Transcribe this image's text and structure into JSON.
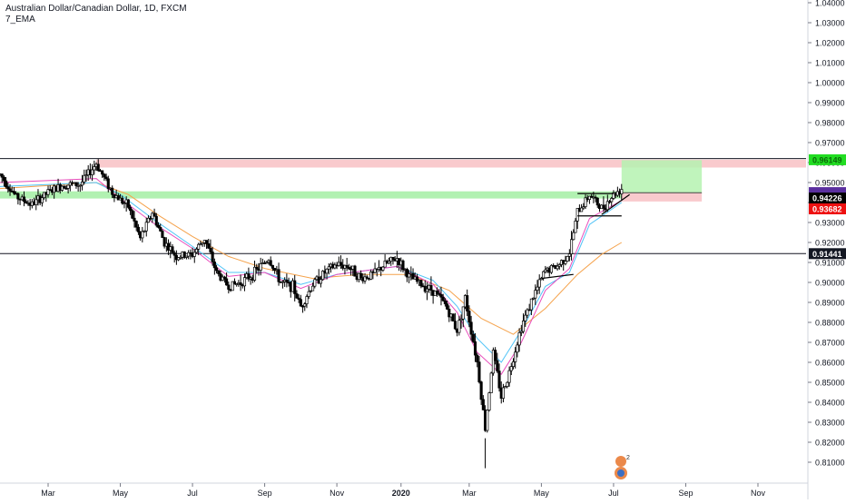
{
  "chart": {
    "title": "Australian Dollar/Canadian Dollar, 1D, FXCM",
    "indicator_label": "7_EMA",
    "watermark_text": "2"
  },
  "chart_data": {
    "type": "candlestick",
    "symbol": "AUDCAD",
    "timeframe": "1D",
    "broker": "FXCM",
    "y_range": [
      0.8,
      1.04
    ],
    "y_ticks": [
      1.04,
      1.03,
      1.02,
      1.01,
      1.0,
      0.99,
      0.98,
      0.97,
      0.96,
      0.95,
      0.94,
      0.93,
      0.92,
      0.91,
      0.9,
      0.89,
      0.88,
      0.87,
      0.86,
      0.85,
      0.84,
      0.83,
      0.82,
      0.81
    ],
    "y_tick_labels": [
      "1.04000",
      "1.03000",
      "1.02000",
      "1.01000",
      "1.00000",
      "0.99000",
      "0.98000",
      "0.97000",
      "0.96000",
      "0.95000",
      "0.94000",
      "0.93000",
      "0.92000",
      "0.91000",
      "0.90000",
      "0.89000",
      "0.88000",
      "0.87000",
      "0.86000",
      "0.85000",
      "0.84000",
      "0.83000",
      "0.82000",
      "0.81000"
    ],
    "x_labels": [
      {
        "label": "Mar",
        "x": 12
      },
      {
        "label": "May",
        "x": 30
      },
      {
        "label": "Jul",
        "x": 48
      },
      {
        "label": "Sep",
        "x": 66
      },
      {
        "label": "Nov",
        "x": 84
      },
      {
        "label": "2020",
        "x": 100
      },
      {
        "label": "Mar",
        "x": 117
      },
      {
        "label": "May",
        "x": 135
      },
      {
        "label": "Jul",
        "x": 153
      },
      {
        "label": "Sep",
        "x": 171
      },
      {
        "label": "Nov",
        "x": 189
      }
    ],
    "x_range": [
      0,
      201
    ],
    "price_path": [
      [
        0,
        0.954
      ],
      [
        4,
        0.943
      ],
      [
        8,
        0.939
      ],
      [
        12,
        0.945
      ],
      [
        16,
        0.949
      ],
      [
        20,
        0.949
      ],
      [
        24,
        0.9595
      ],
      [
        28,
        0.945
      ],
      [
        32,
        0.938
      ],
      [
        35,
        0.922
      ],
      [
        38,
        0.935
      ],
      [
        41,
        0.92
      ],
      [
        44,
        0.913
      ],
      [
        48,
        0.914
      ],
      [
        51,
        0.922
      ],
      [
        54,
        0.905
      ],
      [
        57,
        0.898
      ],
      [
        60,
        0.9
      ],
      [
        63,
        0.904
      ],
      [
        67,
        0.912
      ],
      [
        70,
        0.9
      ],
      [
        73,
        0.898
      ],
      [
        75,
        0.888
      ],
      [
        78,
        0.899
      ],
      [
        81,
        0.905
      ],
      [
        84,
        0.909
      ],
      [
        87,
        0.908
      ],
      [
        90,
        0.902
      ],
      [
        93,
        0.904
      ],
      [
        96,
        0.909
      ],
      [
        99,
        0.912
      ],
      [
        102,
        0.903
      ],
      [
        105,
        0.899
      ],
      [
        108,
        0.896
      ],
      [
        111,
        0.889
      ],
      [
        114,
        0.876
      ],
      [
        116,
        0.892
      ],
      [
        119,
        0.86
      ],
      [
        121,
        0.827
      ],
      [
        123,
        0.865
      ],
      [
        125,
        0.843
      ],
      [
        127,
        0.855
      ],
      [
        130,
        0.878
      ],
      [
        133,
        0.893
      ],
      [
        136,
        0.906
      ],
      [
        139,
        0.908
      ],
      [
        142,
        0.915
      ],
      [
        144,
        0.935
      ],
      [
        147,
        0.944
      ],
      [
        150,
        0.937
      ],
      [
        153,
        0.944
      ],
      [
        155,
        0.947
      ]
    ],
    "ema_pink_path": [
      [
        0,
        0.95
      ],
      [
        24,
        0.952
      ],
      [
        30,
        0.942
      ],
      [
        38,
        0.93
      ],
      [
        48,
        0.917
      ],
      [
        57,
        0.903
      ],
      [
        66,
        0.905
      ],
      [
        75,
        0.897
      ],
      [
        84,
        0.904
      ],
      [
        99,
        0.908
      ],
      [
        108,
        0.899
      ],
      [
        114,
        0.885
      ],
      [
        119,
        0.865
      ],
      [
        125,
        0.854
      ],
      [
        130,
        0.87
      ],
      [
        136,
        0.896
      ],
      [
        142,
        0.907
      ],
      [
        147,
        0.932
      ],
      [
        155,
        0.941
      ]
    ],
    "ema_blue_path": [
      [
        0,
        0.948
      ],
      [
        24,
        0.95
      ],
      [
        30,
        0.944
      ],
      [
        38,
        0.932
      ],
      [
        48,
        0.918
      ],
      [
        57,
        0.905
      ],
      [
        66,
        0.905
      ],
      [
        75,
        0.899
      ],
      [
        84,
        0.904
      ],
      [
        99,
        0.908
      ],
      [
        108,
        0.901
      ],
      [
        114,
        0.888
      ],
      [
        119,
        0.872
      ],
      [
        125,
        0.86
      ],
      [
        130,
        0.876
      ],
      [
        136,
        0.898
      ],
      [
        142,
        0.905
      ],
      [
        147,
        0.929
      ],
      [
        155,
        0.94
      ]
    ],
    "ema_orange_path": [
      [
        0,
        0.947
      ],
      [
        24,
        0.95
      ],
      [
        32,
        0.944
      ],
      [
        40,
        0.933
      ],
      [
        48,
        0.923
      ],
      [
        57,
        0.913
      ],
      [
        66,
        0.907
      ],
      [
        78,
        0.902
      ],
      [
        90,
        0.904
      ],
      [
        102,
        0.904
      ],
      [
        112,
        0.896
      ],
      [
        120,
        0.882
      ],
      [
        128,
        0.874
      ],
      [
        136,
        0.887
      ],
      [
        144,
        0.904
      ],
      [
        150,
        0.914
      ],
      [
        155,
        0.92
      ]
    ],
    "horizontal_lines": [
      {
        "price": 0.962,
        "color": "#131722",
        "x_from": 0
      },
      {
        "price": 0.91441,
        "color": "#131722",
        "x_from": 0
      }
    ],
    "zones": [
      {
        "y_top": 0.9615,
        "y_bottom": 0.9575,
        "x_from": 24,
        "x_to": 201,
        "color": "#f8c4c8"
      },
      {
        "y_top": 0.9456,
        "y_bottom": 0.942,
        "x_from": 0,
        "x_to": 155,
        "color": "#a8f0a8"
      }
    ],
    "position": {
      "entry": 0.9449,
      "target": 0.9612,
      "stop": 0.9405,
      "x_from": 155,
      "x_to": 175,
      "profit_color": "#b5f2b0",
      "loss_color": "#f8c4c8"
    },
    "annotations": [
      {
        "type": "line",
        "from": [
          144,
          0.9445
        ],
        "to": [
          153,
          0.9445
        ]
      },
      {
        "type": "line",
        "from": [
          144,
          0.9333
        ],
        "to": [
          155,
          0.9333
        ]
      },
      {
        "type": "line",
        "from": [
          150,
          0.934
        ],
        "to": [
          157,
          0.944
        ]
      },
      {
        "type": "line",
        "from": [
          135,
          0.902
        ],
        "to": [
          143,
          0.904
        ]
      }
    ],
    "price_labels": [
      {
        "price": 0.9614,
        "text": "0.96149",
        "bg": "#22dd22",
        "fg": "#0a6b0a"
      },
      {
        "price": 0.94496,
        "text": "0.94496",
        "bg": "#5b2f9f",
        "fg": "#ffffff"
      },
      {
        "price": 0.9437,
        "text": "08:36:08",
        "bg": "#5b2f9f",
        "fg": "#ffffff"
      },
      {
        "price": 0.94226,
        "text": "0.94226",
        "bg": "#000000",
        "fg": "#ffffff"
      },
      {
        "price": 0.93682,
        "text": "0.93682",
        "bg": "#ee1111",
        "fg": "#ffffff"
      },
      {
        "price": 0.91441,
        "text": "0.91441",
        "bg": "#131722",
        "fg": "#ffffff"
      }
    ]
  }
}
